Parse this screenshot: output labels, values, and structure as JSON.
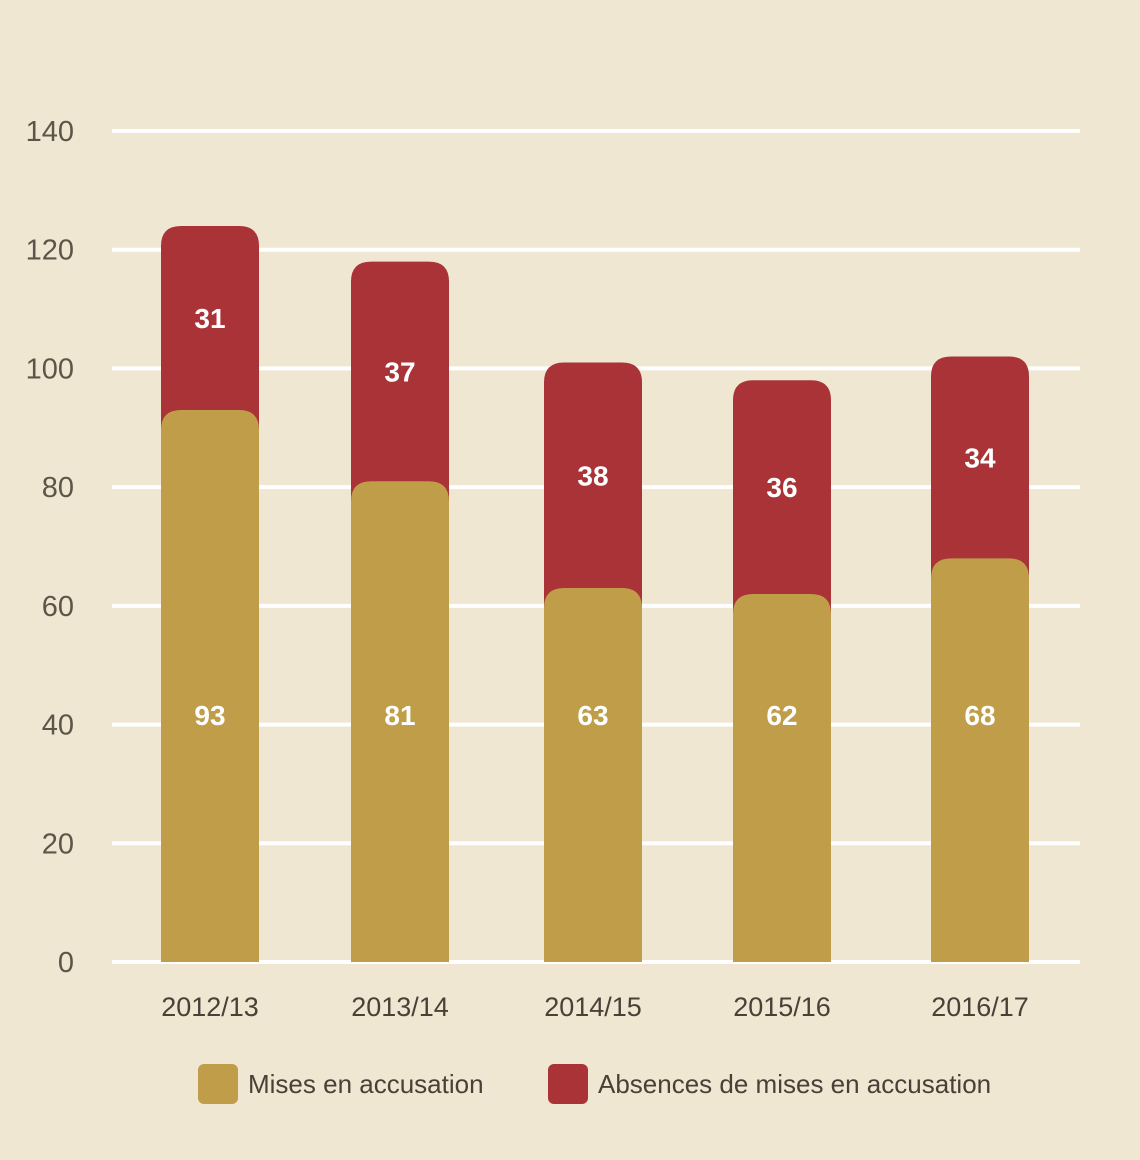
{
  "chart_data": {
    "type": "bar",
    "stacked": true,
    "categories": [
      "2012/13",
      "2013/14",
      "2014/15",
      "2015/16",
      "2016/17"
    ],
    "series": [
      {
        "name": "Mises en accusation",
        "values": [
          93,
          81,
          63,
          62,
          68
        ],
        "color": "#bf9d49"
      },
      {
        "name": "Absences de mises en accusation",
        "values": [
          31,
          37,
          38,
          36,
          34
        ],
        "color": "#a93337"
      }
    ],
    "yticks": [
      "0",
      "20",
      "40",
      "60",
      "80",
      "100",
      "120",
      "140"
    ],
    "ylim": [
      0,
      140
    ],
    "grid": true,
    "legend": "bottom",
    "background": "#efe7d2"
  }
}
